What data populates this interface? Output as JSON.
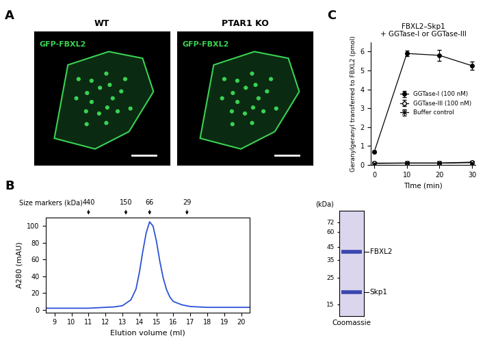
{
  "panel_labels": [
    "A",
    "B",
    "C"
  ],
  "micrographs": [
    {
      "title": "WT",
      "label": "GFP-FBXL2"
    },
    {
      "title": "PTAR1 KO",
      "label": "GFP-FBXL2"
    }
  ],
  "chart_data": [
    {
      "type": "line",
      "xlabel": "Elution volume (ml)",
      "ylabel": "A280 (mAU)",
      "x": [
        8.5,
        9,
        10,
        11,
        11.5,
        12,
        12.5,
        13,
        13.5,
        13.8,
        14,
        14.2,
        14.4,
        14.6,
        14.8,
        15,
        15.2,
        15.4,
        15.6,
        15.8,
        16,
        16.5,
        17,
        18,
        19,
        20,
        20.5
      ],
      "values": [
        2,
        2,
        2,
        2,
        2.5,
        3,
        3.5,
        5,
        12,
        25,
        45,
        70,
        92,
        105,
        100,
        82,
        58,
        38,
        24,
        15,
        10,
        6,
        4,
        3,
        3,
        3,
        3
      ],
      "color": "#2b50d6",
      "xlim": [
        8.5,
        20.5
      ],
      "xticks": [
        9,
        10,
        11,
        12,
        13,
        14,
        15,
        16,
        17,
        18,
        19,
        20
      ],
      "ylim": [
        -3,
        110
      ],
      "yticks": [
        0,
        20,
        40,
        60,
        80,
        100
      ],
      "size_markers": {
        "label": "Size markers (kDa)",
        "x": [
          11,
          13.2,
          14.6,
          16.8
        ],
        "values": [
          440,
          150,
          66,
          29
        ]
      }
    },
    {
      "type": "line",
      "title": "FBXL2–Skp1\n+ GGTase-I or GGTase-III",
      "xlabel": "TIme (min)",
      "ylabel": "Geranylgeranyl transferred to FBXL2 (pmol)",
      "x": [
        0,
        10,
        20,
        30
      ],
      "series": [
        {
          "name": "GGTase-I (100 nM)",
          "color": "#000000",
          "marker": "filled circle",
          "values": [
            0.7,
            5.9,
            5.8,
            5.25
          ],
          "errors": [
            0.05,
            0.15,
            0.3,
            0.22
          ]
        },
        {
          "name": "GGTase-III (100 nM)",
          "color": "#000000",
          "marker": "open circle",
          "values": [
            0.1,
            0.1,
            0.1,
            0.15
          ],
          "errors": [
            0.02,
            0.03,
            0.03,
            0.05
          ]
        },
        {
          "name": "Buffer control",
          "color": "#000000",
          "marker": "x",
          "values": [
            0.08,
            0.1,
            0.1,
            0.12
          ],
          "errors": [
            0.02,
            0.02,
            0.02,
            0.03
          ]
        }
      ],
      "xlim": [
        -1,
        31
      ],
      "xticks": [
        0,
        10,
        20,
        30
      ],
      "ylim": [
        0,
        6.5
      ],
      "yticks": [
        0,
        1,
        2,
        3,
        4,
        5,
        6
      ],
      "legend": "center right"
    }
  ],
  "gel": {
    "xlabel": "Coomassie",
    "ylabel": "(kDa)",
    "log": "y",
    "tick_labels": "y",
    "ylim": [
      12,
      90
    ],
    "yticks": [
      15,
      25,
      35,
      45,
      60,
      72
    ],
    "bands": [
      {
        "label": "FBXL2",
        "value": 41
      },
      {
        "label": "Skp1",
        "value": 19
      }
    ]
  }
}
